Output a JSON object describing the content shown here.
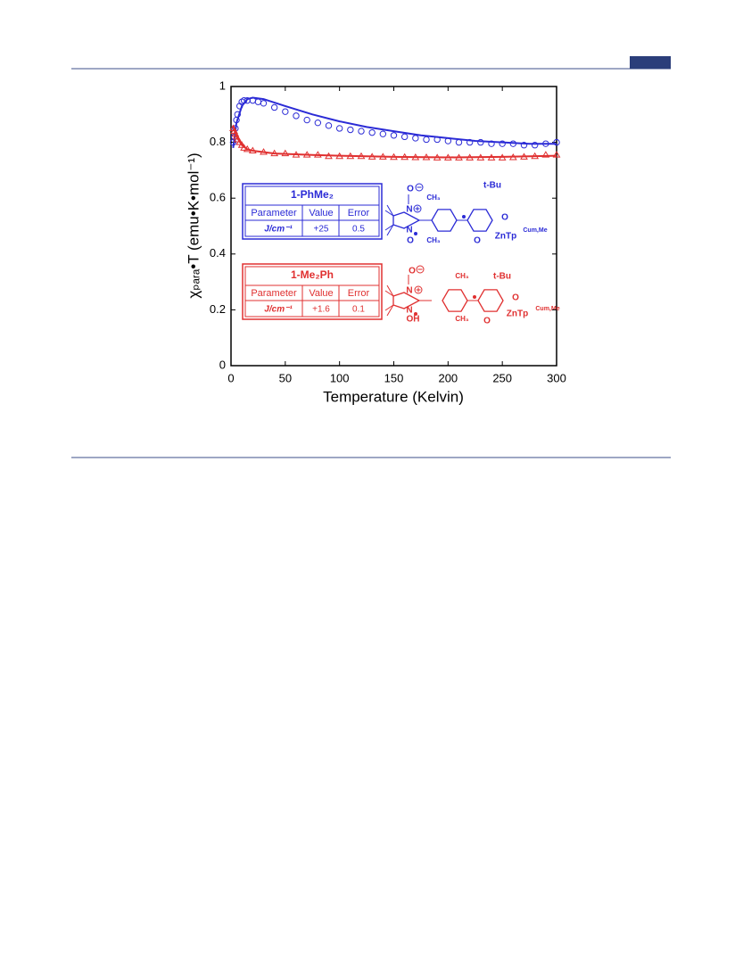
{
  "chart_data": {
    "type": "scatter",
    "xlabel": "Temperature (Kelvin)",
    "ylabel": "χₚₐᵣₐ•T (emu•K•mol⁻¹)",
    "xlim": [
      0,
      300
    ],
    "ylim": [
      0,
      1
    ],
    "xticks": [
      0,
      50,
      100,
      150,
      200,
      250,
      300
    ],
    "yticks": [
      0,
      0.2,
      0.4,
      0.6,
      0.8,
      1
    ],
    "series": [
      {
        "name": "1-PhMe₂",
        "color": "#2b2bd6",
        "marker": "circle",
        "x": [
          2,
          3,
          4,
          5,
          6,
          8,
          10,
          12,
          15,
          20,
          25,
          30,
          40,
          50,
          60,
          70,
          80,
          90,
          100,
          110,
          120,
          130,
          140,
          150,
          160,
          170,
          180,
          190,
          200,
          210,
          220,
          230,
          240,
          250,
          260,
          270,
          280,
          290,
          300
        ],
        "values": [
          0.8,
          0.82,
          0.85,
          0.88,
          0.9,
          0.93,
          0.945,
          0.95,
          0.95,
          0.95,
          0.945,
          0.94,
          0.925,
          0.91,
          0.895,
          0.88,
          0.87,
          0.86,
          0.85,
          0.845,
          0.84,
          0.835,
          0.83,
          0.825,
          0.82,
          0.815,
          0.81,
          0.81,
          0.805,
          0.8,
          0.8,
          0.8,
          0.795,
          0.795,
          0.795,
          0.79,
          0.79,
          0.795,
          0.8
        ]
      },
      {
        "color": "#2b2bd6",
        "line": true,
        "x": [
          2,
          5,
          10,
          15,
          20,
          30,
          50,
          75,
          100,
          125,
          150,
          175,
          200,
          225,
          250,
          275,
          300
        ],
        "values": [
          0.78,
          0.87,
          0.93,
          0.955,
          0.96,
          0.955,
          0.93,
          0.9,
          0.875,
          0.855,
          0.84,
          0.825,
          0.815,
          0.805,
          0.8,
          0.795,
          0.795
        ]
      },
      {
        "name": "1-Me₂Ph",
        "color": "#e03030",
        "marker": "triangle",
        "x": [
          2,
          3,
          4,
          5,
          6,
          8,
          10,
          12,
          15,
          20,
          30,
          40,
          50,
          60,
          70,
          80,
          90,
          100,
          110,
          120,
          130,
          140,
          150,
          160,
          170,
          180,
          190,
          200,
          210,
          220,
          230,
          240,
          250,
          260,
          270,
          280,
          290,
          300
        ],
        "values": [
          0.85,
          0.84,
          0.83,
          0.82,
          0.81,
          0.8,
          0.79,
          0.78,
          0.775,
          0.77,
          0.765,
          0.76,
          0.76,
          0.755,
          0.755,
          0.755,
          0.75,
          0.75,
          0.75,
          0.75,
          0.748,
          0.748,
          0.747,
          0.747,
          0.746,
          0.746,
          0.745,
          0.745,
          0.745,
          0.745,
          0.745,
          0.745,
          0.745,
          0.746,
          0.748,
          0.75,
          0.755,
          0.755
        ]
      },
      {
        "color": "#e03030",
        "line": true,
        "x": [
          2,
          5,
          10,
          15,
          20,
          40,
          75,
          100,
          150,
          200,
          250,
          300
        ],
        "values": [
          0.86,
          0.82,
          0.79,
          0.775,
          0.77,
          0.76,
          0.755,
          0.752,
          0.748,
          0.746,
          0.748,
          0.752
        ]
      }
    ],
    "insets": [
      {
        "header": [
          "Parameter",
          "Value",
          "Error"
        ],
        "row": [
          "J/cm⁻¹",
          "+25",
          "0.5"
        ],
        "structure_labels": [
          "O",
          "N",
          "N",
          "O",
          "CH₃",
          "CH₃",
          "t-Bu",
          "O",
          "O",
          "ZnTp",
          "Cum,Me"
        ]
      },
      {
        "header": [
          "Parameter",
          "Value",
          "Error"
        ],
        "row": [
          "J/cm⁻¹",
          "+1.6",
          "0.1"
        ],
        "structure_labels": [
          "O",
          "N",
          "N",
          "OH",
          "CH₃",
          "CH₃",
          "t-Bu",
          "O",
          "O",
          "ZnTp",
          "Cum,Me"
        ]
      }
    ]
  }
}
